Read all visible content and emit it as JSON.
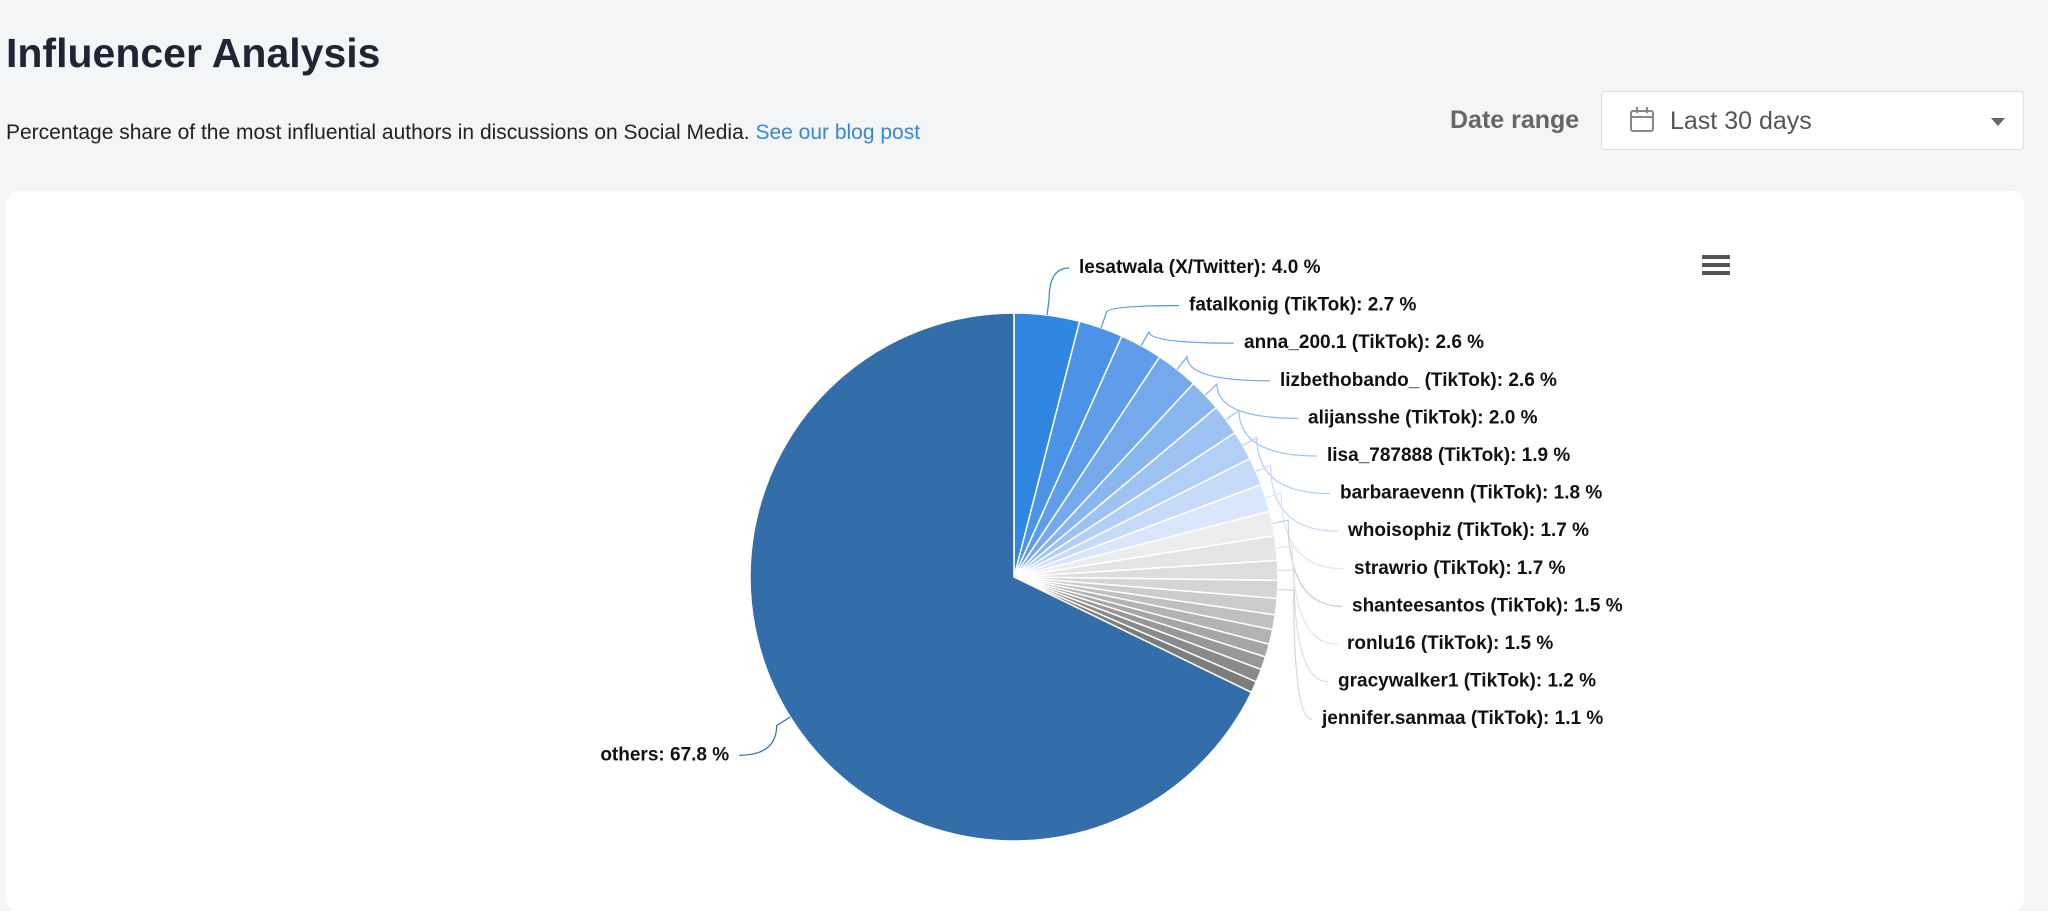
{
  "header": {
    "title": "Influencer Analysis",
    "subtitle": "Percentage share of the most influential authors in discussions on Social Media.",
    "link": "See our blog post"
  },
  "date_range": {
    "label": "Date range",
    "value": "Last 30 days"
  },
  "chart_data": {
    "type": "pie",
    "categories": [
      "lesatwala (X/Twitter)",
      "fatalkonig (TikTok)",
      "anna_200.1 (TikTok)",
      "lizbethobando_ (TikTok)",
      "alijansshe (TikTok)",
      "lisa_787888 (TikTok)",
      "barbaraevenn (TikTok)",
      "whoisophiz (TikTok)",
      "strawrio (TikTok)",
      "shanteesantos (TikTok)",
      "ronlu16 (TikTok)",
      "gracywalker1 (TikTok)",
      "jennifer.sanmaa (TikTok)",
      null,
      null,
      null,
      null,
      null,
      null,
      null,
      "others"
    ],
    "values": [
      4.0,
      2.7,
      2.6,
      2.6,
      2.0,
      1.9,
      1.8,
      1.7,
      1.7,
      1.5,
      1.5,
      1.2,
      1.1,
      1.0,
      0.9,
      0.9,
      0.8,
      0.8,
      0.8,
      0.7,
      67.8
    ],
    "value_labels": [
      ": 4.0 %",
      ": 2.7 %",
      ": 2.6 %",
      ": 2.6 %",
      ": 2.0 %",
      ": 1.9 %",
      ": 1.8 %",
      ": 1.7 %",
      ": 1.7 %",
      ": 1.5 %",
      ": 1.5 %",
      ": 1.2 %",
      ": 1.1 %",
      null,
      null,
      null,
      null,
      null,
      null,
      null,
      ": 67.8 %"
    ],
    "colors": [
      "#2f87e1",
      "#4a93e6",
      "#5f9de9",
      "#75a9ec",
      "#8ab6ef",
      "#9ec3f2",
      "#b2cff5",
      "#c6dbf8",
      "#d9e6fb",
      "#ededed",
      "#e5e5e5",
      "#dddddd",
      "#d5d5d5",
      "#cccccc",
      "#c0c0c0",
      "#b3b3b3",
      "#a6a6a6",
      "#989898",
      "#8a8a8a",
      "#7c7c7c",
      "#336eab"
    ]
  }
}
